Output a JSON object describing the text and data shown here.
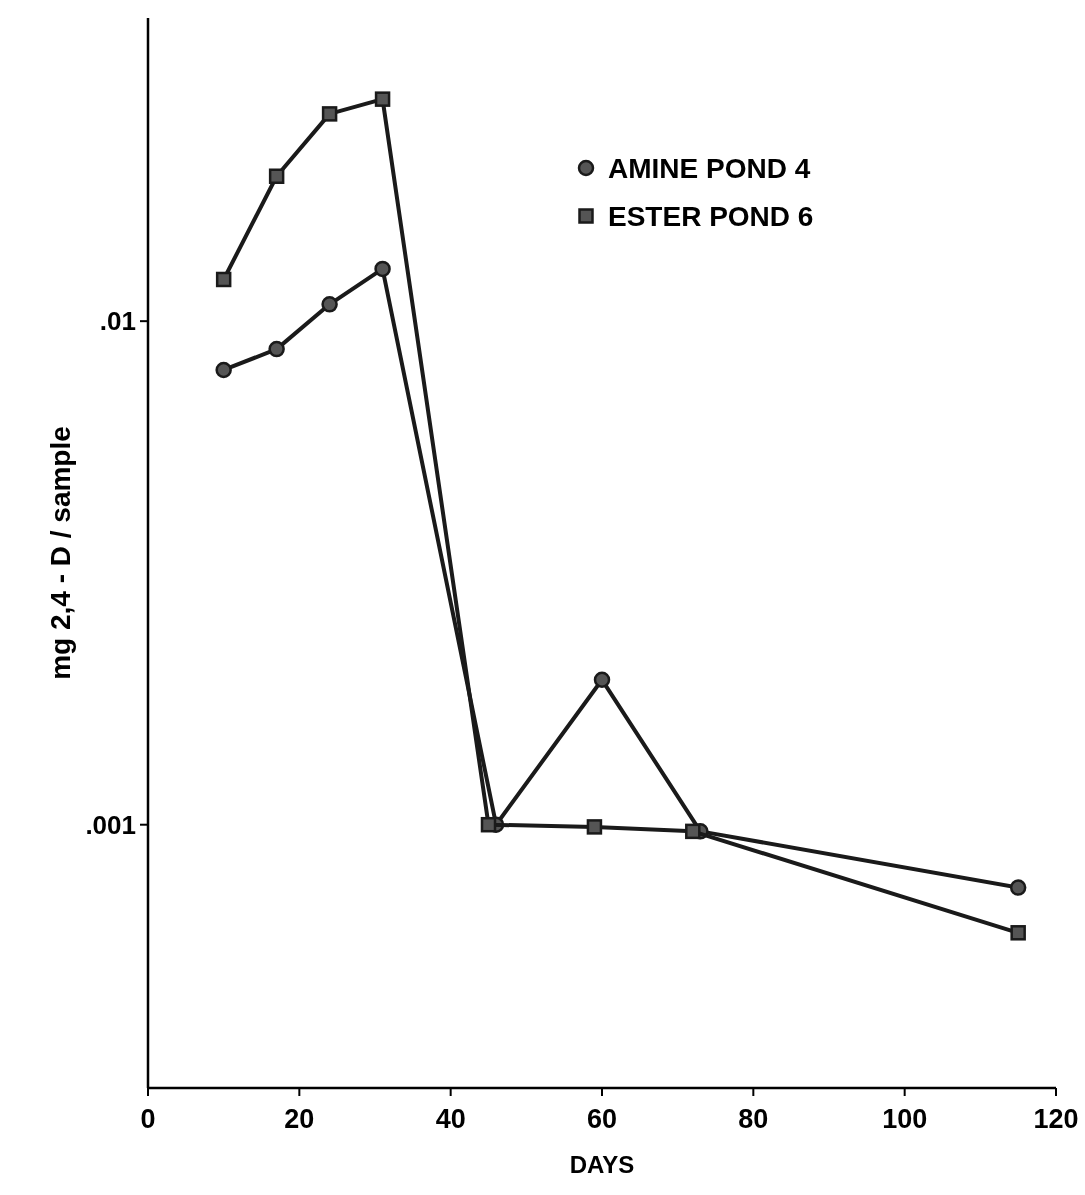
{
  "chart_data": {
    "type": "line",
    "xlabel": "DAYS",
    "ylabel": "mg 2,4 - D / sample",
    "log": "y",
    "xlim": [
      0,
      120
    ],
    "xticks": [
      0,
      20,
      40,
      60,
      80,
      100,
      120
    ],
    "ylim": [
      0.0003,
      0.04
    ],
    "yticks": [
      {
        "value": 0.01,
        "label": ".01"
      },
      {
        "value": 0.001,
        "label": ".001"
      }
    ],
    "grid": false,
    "legend": "top right",
    "line_style": "solid",
    "series": [
      {
        "name": "AMINE POND 4",
        "color": "#1a1a1a",
        "marker": "circle",
        "x": [
          10,
          17,
          24,
          31,
          46,
          60,
          73,
          115
        ],
        "values": [
          0.008,
          0.0088,
          0.0108,
          0.0127,
          0.001,
          0.00194,
          0.00097,
          0.00075
        ]
      },
      {
        "name": "ESTER POND 6",
        "color": "#1a1a1a",
        "marker": "square",
        "x": [
          10,
          17,
          24,
          31,
          45,
          59,
          72,
          115
        ],
        "values": [
          0.0121,
          0.0194,
          0.0258,
          0.0276,
          0.001,
          0.00099,
          0.00097,
          0.00061
        ]
      }
    ]
  }
}
